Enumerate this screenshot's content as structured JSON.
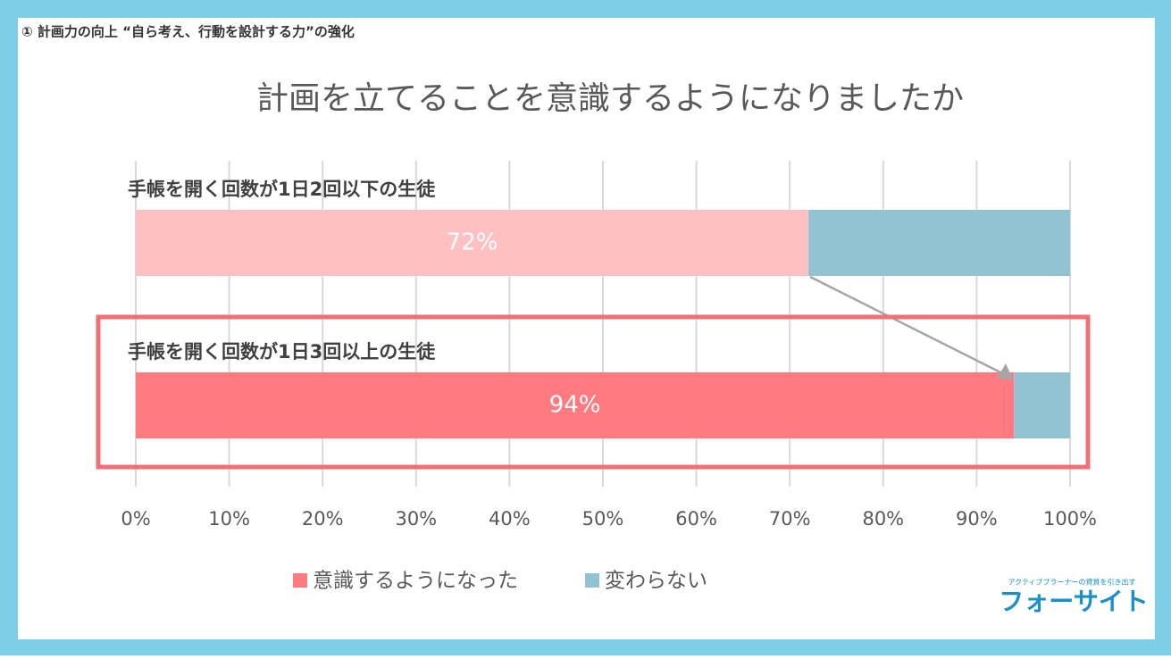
{
  "header": {
    "title": "① 計画力の向上 “自ら考え、行動を設計する力”の強化"
  },
  "logo": {
    "tagline": "アクティブプラーナーの資質を引き出す",
    "name": "フォーサイト"
  },
  "chart_data": {
    "type": "stacked-barh",
    "title": "計画を立てることを意識するようになりましたか",
    "categories": [
      "手帳を開く回数が1日2回以下の生徒",
      "手帳を開く回数が1日3回以上の生徒"
    ],
    "series": [
      {
        "name": "意識するようになった",
        "color": "#ff7b80",
        "colors": [
          "#ffc0c3",
          "#ff7b80"
        ],
        "values": [
          72,
          94
        ],
        "value_labels": [
          "72%",
          "94%"
        ]
      },
      {
        "name": "変わらない",
        "color": "#92c3d3",
        "values": [
          28,
          6
        ]
      }
    ],
    "xlim": [
      0,
      100
    ],
    "xticks": [
      {
        "value": 0,
        "label": "0%"
      },
      {
        "value": 10,
        "label": "10%"
      },
      {
        "value": 20,
        "label": "20%"
      },
      {
        "value": 30,
        "label": "30%"
      },
      {
        "value": 40,
        "label": "40%"
      },
      {
        "value": 50,
        "label": "50%"
      },
      {
        "value": 60,
        "label": "60%"
      },
      {
        "value": 70,
        "label": "70%"
      },
      {
        "value": 80,
        "label": "80%"
      },
      {
        "value": 90,
        "label": "90%"
      },
      {
        "value": 100,
        "label": "100%"
      }
    ],
    "grid": true
  }
}
